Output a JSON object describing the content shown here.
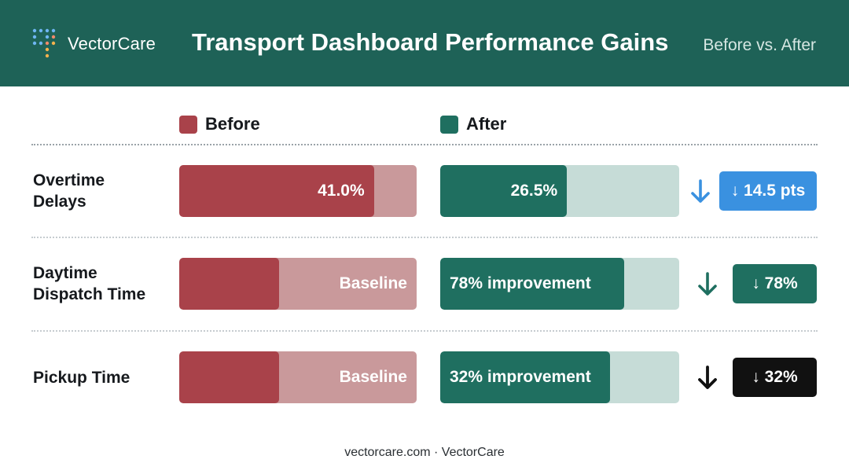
{
  "header": {
    "brand": "VectorCare",
    "title": "Transport Dashboard Performance Gains",
    "subtitle": "Before vs. After",
    "logo_icon": "dot-grid-logo-icon"
  },
  "legend": [
    {
      "label": "Before",
      "color": "#a9424a"
    },
    {
      "label": "After",
      "color": "#1f6f60"
    }
  ],
  "colors": {
    "header_bg": "#1e6257",
    "before_fill": "#a9424a",
    "before_track": "#c9999b",
    "after_fill": "#1f6f60",
    "after_track": "#c6dcd7",
    "badge_blue": "#3a91e0",
    "badge_green": "#1f6f60",
    "badge_black": "#111111"
  },
  "chart_data": {
    "type": "bar",
    "categories": [
      "Overtime Delays",
      "Daytime Dispatch Time",
      "Pickup Time"
    ],
    "series": [
      {
        "name": "Before",
        "fill_fractions": [
          0.82,
          0.42,
          0.42
        ],
        "labels": [
          "41.0%",
          "Baseline",
          "Baseline"
        ]
      },
      {
        "name": "After",
        "fill_fractions": [
          0.53,
          0.77,
          0.71
        ],
        "labels": [
          "26.5%",
          "78% improvement",
          "32% improvement"
        ]
      }
    ],
    "changes": [
      {
        "label": "↓ 14.5 pts",
        "arrow_icon": "arrow-down-icon",
        "color": "#3a91e0"
      },
      {
        "label": "↓ 78%",
        "arrow_icon": "arrow-down-icon",
        "color": "#1f6f60"
      },
      {
        "label": "↓ 32%",
        "arrow_icon": "arrow-down-icon",
        "color": "#111111"
      }
    ],
    "legend_position": "top"
  },
  "rows": [
    {
      "label_lines": [
        "Overtime",
        "Delays"
      ]
    },
    {
      "label_lines": [
        "Daytime",
        "Dispatch Time"
      ]
    },
    {
      "label_lines": [
        "Pickup Time"
      ]
    }
  ],
  "footer": {
    "text": "vectorcare.com · VectorCare"
  }
}
